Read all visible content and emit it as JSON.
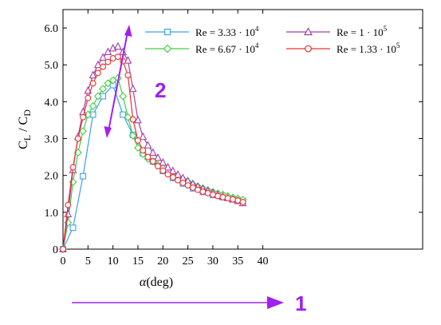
{
  "chart_data": {
    "type": "line",
    "xlabel": "α (deg)",
    "ylabel": "CL / CD",
    "xlim": [
      0,
      72
    ],
    "ylim": [
      0,
      6.5
    ],
    "xticks": [
      "0",
      "5",
      "10",
      "15",
      "20",
      "25",
      "30",
      "35",
      "40"
    ],
    "yticks": [
      "0",
      "1.0",
      "2.0",
      "3.0",
      "4.0",
      "5.0",
      "6.0"
    ],
    "grid": false,
    "legend_placement": "top-right",
    "series": [
      {
        "name": "Re = 3.33 · 10^4",
        "color": "#3aa0f0",
        "marker": "square",
        "x": [
          0,
          2,
          4,
          6,
          8,
          10,
          12,
          14,
          16,
          18,
          20,
          22,
          24,
          26,
          28,
          30,
          32,
          34,
          36
        ],
        "y": [
          0,
          0.58,
          1.98,
          3.65,
          4.15,
          4.45,
          3.65,
          3.1,
          2.6,
          2.38,
          2.12,
          1.93,
          1.78,
          1.65,
          1.55,
          1.47,
          1.41,
          1.36,
          1.31
        ]
      },
      {
        "name": "Re = 6.67 · 10^4",
        "color": "#40d040",
        "marker": "diamond",
        "x": [
          0,
          1,
          2,
          3,
          4,
          5,
          6,
          7,
          8,
          9,
          10,
          11,
          12,
          13,
          14,
          15,
          16,
          17,
          18,
          19,
          20,
          21,
          22,
          23,
          24,
          25,
          26,
          27,
          28,
          29,
          30,
          31,
          32,
          33,
          34,
          35,
          36
        ],
        "y": [
          0,
          0.72,
          1.82,
          2.62,
          3.2,
          3.65,
          3.88,
          4.15,
          4.35,
          4.5,
          4.58,
          4.64,
          4.15,
          3.58,
          3.08,
          2.75,
          2.58,
          2.45,
          2.38,
          2.28,
          2.2,
          2.12,
          2.05,
          1.97,
          1.9,
          1.83,
          1.76,
          1.7,
          1.65,
          1.6,
          1.55,
          1.51,
          1.48,
          1.44,
          1.4,
          1.37,
          1.34
        ]
      },
      {
        "name": "Re = 1 · 10^5",
        "color": "#a040a8",
        "marker": "triangle",
        "x": [
          0,
          1,
          2,
          3,
          4,
          5,
          6,
          7,
          8,
          9,
          10,
          11,
          12,
          13,
          14,
          15,
          16,
          17,
          18,
          19,
          20,
          21,
          22,
          23,
          24,
          25,
          26,
          27,
          28,
          29,
          30,
          31,
          32,
          33,
          34,
          35,
          36
        ],
        "y": [
          0,
          0.95,
          2.15,
          3.05,
          3.72,
          4.3,
          4.72,
          5.0,
          5.2,
          5.35,
          5.45,
          5.5,
          5.35,
          5.12,
          4.35,
          3.5,
          3.05,
          2.82,
          2.62,
          2.48,
          2.35,
          2.22,
          2.12,
          2.02,
          1.93,
          1.85,
          1.77,
          1.7,
          1.64,
          1.58,
          1.53,
          1.48,
          1.43,
          1.39,
          1.35,
          1.31,
          1.25
        ]
      },
      {
        "name": "Re = 1.33 · 10^5",
        "color": "#f03030",
        "marker": "circle",
        "x": [
          0,
          1,
          2,
          3,
          4,
          5,
          6,
          7,
          8,
          9,
          10,
          11,
          12,
          13,
          14,
          15,
          16,
          17,
          18,
          19,
          20,
          21,
          22,
          23,
          24,
          25,
          26,
          27,
          28,
          29,
          30,
          31,
          32,
          33,
          34,
          35,
          36
        ],
        "y": [
          0,
          1.2,
          2.22,
          3.0,
          3.58,
          4.1,
          4.5,
          4.78,
          4.95,
          5.08,
          5.18,
          5.22,
          5.1,
          4.72,
          3.52,
          2.95,
          2.68,
          2.5,
          2.38,
          2.25,
          2.13,
          2.03,
          1.95,
          1.87,
          1.8,
          1.73,
          1.67,
          1.61,
          1.56,
          1.52,
          1.48,
          1.44,
          1.41,
          1.38,
          1.35,
          1.32,
          1.28
        ]
      }
    ]
  },
  "legend": [
    {
      "base": "Re = 3.33 · 10",
      "exp": "4"
    },
    {
      "base": "Re = 6.67 · 10",
      "exp": "4"
    },
    {
      "base": "Re = 1 · 10",
      "exp": "5"
    },
    {
      "base": "Re = 1.33 · 10",
      "exp": "5"
    }
  ],
  "axis_labels": {
    "x_symbol": "α",
    "x_unit": "(deg)",
    "y_c1": "C",
    "y_sub1": "L",
    "y_sep": " / ",
    "y_c2": "C",
    "y_sub2": "D"
  },
  "annotations": [
    {
      "text": "1",
      "color": "#a020f0"
    },
    {
      "text": "2",
      "color": "#a020f0"
    }
  ]
}
